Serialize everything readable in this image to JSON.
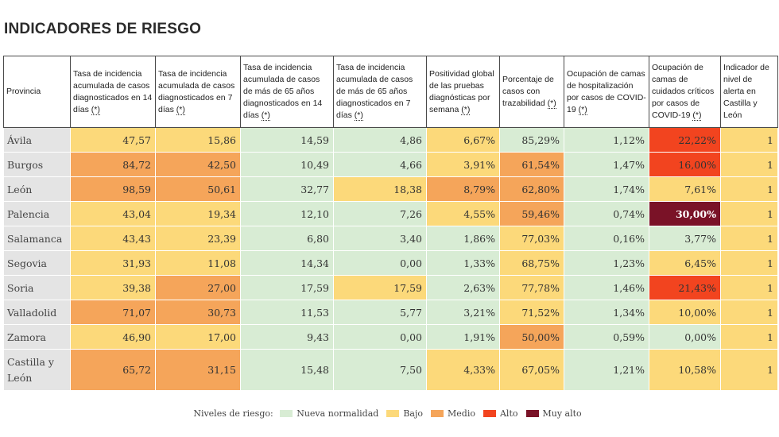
{
  "title": "INDICADORES DE RIESGO",
  "columns": [
    {
      "label": "Provincia",
      "abbr": ""
    },
    {
      "label": "Tasa de incidencia acumulada de casos diagnosticados en 14 días ",
      "abbr": "(*)"
    },
    {
      "label": "Tasa de incidencia acumulada de casos diagnosticados en 7 días ",
      "abbr": "(*)"
    },
    {
      "label": "Tasa de incidencia acumulada de casos de más de 65 años diagnosticados en 14 días ",
      "abbr": "(*)"
    },
    {
      "label": "Tasa de incidencia acumulada de casos de más de 65 años diagnosticados en 7 días ",
      "abbr": "(*)"
    },
    {
      "label": "Positividad global de las pruebas diagnósticas por semana ",
      "abbr": "(*)"
    },
    {
      "label": "Porcentaje de casos con trazabilidad ",
      "abbr": "(*)"
    },
    {
      "label": "Ocupación de camas de hospitalización por casos de COVID-19 ",
      "abbr": "(*)"
    },
    {
      "label": "Ocupación de camas de cuidados críticos por casos de COVID-19 ",
      "abbr": "(*)"
    },
    {
      "label": "Indicador de nivel de alerta en Castilla y León",
      "abbr": ""
    }
  ],
  "rows": [
    {
      "provincia": "Ávila",
      "values": [
        "47,57",
        "15,86",
        "14,59",
        "4,86",
        "6,67%",
        "85,29%",
        "1,12%",
        "22,22%",
        "1"
      ],
      "levels": [
        "bajo",
        "bajo",
        "normal",
        "normal",
        "bajo",
        "normal",
        "normal",
        "alto",
        "bajo"
      ]
    },
    {
      "provincia": "Burgos",
      "values": [
        "84,72",
        "42,50",
        "10,49",
        "4,66",
        "3,91%",
        "61,54%",
        "1,47%",
        "16,00%",
        "1"
      ],
      "levels": [
        "medio",
        "medio",
        "normal",
        "normal",
        "bajo",
        "medio",
        "normal",
        "alto",
        "bajo"
      ]
    },
    {
      "provincia": "León",
      "values": [
        "98,59",
        "50,61",
        "32,77",
        "18,38",
        "8,79%",
        "62,80%",
        "1,74%",
        "7,61%",
        "1"
      ],
      "levels": [
        "medio",
        "medio",
        "normal",
        "bajo",
        "medio",
        "medio",
        "normal",
        "bajo",
        "bajo"
      ]
    },
    {
      "provincia": "Palencia",
      "values": [
        "43,04",
        "19,34",
        "12,10",
        "7,26",
        "4,55%",
        "59,46%",
        "0,74%",
        "30,00%",
        "1"
      ],
      "levels": [
        "bajo",
        "bajo",
        "normal",
        "normal",
        "bajo",
        "medio",
        "normal",
        "muyalto",
        "bajo"
      ]
    },
    {
      "provincia": "Salamanca",
      "values": [
        "43,43",
        "23,39",
        "6,80",
        "3,40",
        "1,86%",
        "77,03%",
        "0,16%",
        "3,77%",
        "1"
      ],
      "levels": [
        "bajo",
        "bajo",
        "normal",
        "normal",
        "normal",
        "bajo",
        "normal",
        "normal",
        "bajo"
      ]
    },
    {
      "provincia": "Segovia",
      "values": [
        "31,93",
        "11,08",
        "14,34",
        "0,00",
        "1,33%",
        "68,75%",
        "1,23%",
        "6,45%",
        "1"
      ],
      "levels": [
        "bajo",
        "bajo",
        "normal",
        "normal",
        "normal",
        "bajo",
        "normal",
        "bajo",
        "bajo"
      ]
    },
    {
      "provincia": "Soria",
      "values": [
        "39,38",
        "27,00",
        "17,59",
        "17,59",
        "2,63%",
        "77,78%",
        "1,46%",
        "21,43%",
        "1"
      ],
      "levels": [
        "bajo",
        "medio",
        "normal",
        "bajo",
        "normal",
        "bajo",
        "normal",
        "alto",
        "bajo"
      ]
    },
    {
      "provincia": "Valladolid",
      "values": [
        "71,07",
        "30,73",
        "11,53",
        "5,77",
        "3,21%",
        "71,52%",
        "1,34%",
        "10,00%",
        "1"
      ],
      "levels": [
        "medio",
        "medio",
        "normal",
        "normal",
        "normal",
        "bajo",
        "normal",
        "bajo",
        "bajo"
      ]
    },
    {
      "provincia": "Zamora",
      "values": [
        "46,90",
        "17,00",
        "9,43",
        "0,00",
        "1,91%",
        "50,00%",
        "0,59%",
        "0,00%",
        "1"
      ],
      "levels": [
        "bajo",
        "bajo",
        "normal",
        "normal",
        "normal",
        "medio",
        "normal",
        "normal",
        "bajo"
      ]
    },
    {
      "provincia": "Castilla y León",
      "values": [
        "65,72",
        "31,15",
        "15,48",
        "7,50",
        "4,33%",
        "67,05%",
        "1,21%",
        "10,58%",
        "1"
      ],
      "levels": [
        "medio",
        "medio",
        "normal",
        "normal",
        "bajo",
        "bajo",
        "normal",
        "bajo",
        "bajo"
      ]
    }
  ],
  "legend": {
    "label": "Niveles de riesgo:",
    "items": [
      {
        "key": "normal",
        "label": "Nueva normalidad",
        "color": "#d8ecd4"
      },
      {
        "key": "bajo",
        "label": "Bajo",
        "color": "#fcd97a"
      },
      {
        "key": "medio",
        "label": "Medio",
        "color": "#f5a55a"
      },
      {
        "key": "alto",
        "label": "Alto",
        "color": "#f2441f"
      },
      {
        "key": "muyalto",
        "label": "Muy alto",
        "color": "#7a1227"
      }
    ]
  }
}
